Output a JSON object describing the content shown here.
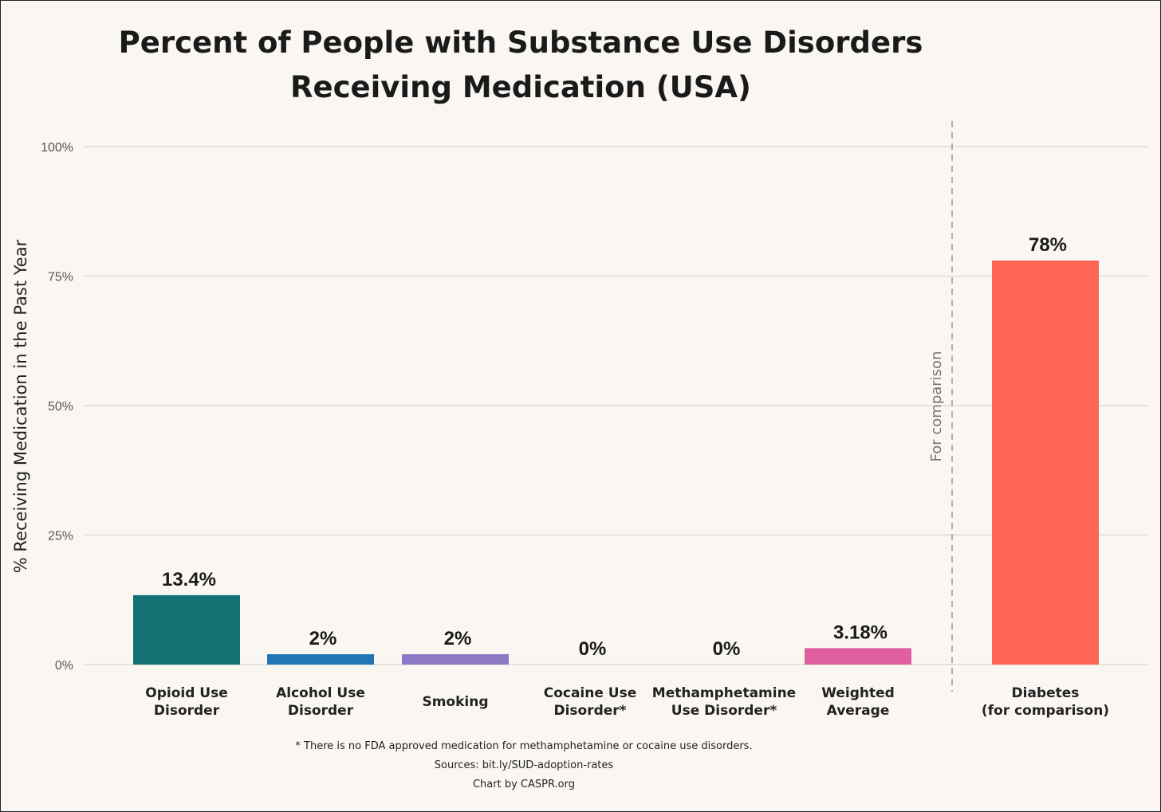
{
  "chart_data": {
    "type": "bar",
    "title_lines": [
      "Percent of People with Substance Use Disorders",
      "Receiving Medication (USA)"
    ],
    "ylabel": "% Receiving Medication in the Past Year",
    "ylim": [
      0,
      100
    ],
    "yticks": [
      0,
      25,
      50,
      75,
      100
    ],
    "ytick_labels": [
      "0%",
      "25%",
      "50%",
      "75%",
      "100%"
    ],
    "grid": true,
    "categories": [
      [
        "Opioid Use",
        "Disorder"
      ],
      [
        "Alcohol Use",
        "Disorder"
      ],
      [
        "Smoking"
      ],
      [
        "Cocaine Use",
        "Disorder*"
      ],
      [
        "Methamphetamine",
        "Use Disorder*"
      ],
      [
        "Weighted",
        "Average"
      ],
      [
        "Diabetes",
        "(for comparison)"
      ]
    ],
    "values": [
      13.4,
      2,
      2,
      0,
      0,
      3.18,
      78
    ],
    "data_labels": [
      "13.4%",
      "2%",
      "2%",
      "0%",
      "0%",
      "3.18%",
      "78%"
    ],
    "colors": [
      "#137073",
      "#2077b4",
      "#8e79c6",
      "#8e79c6",
      "#8e79c6",
      "#e0609f",
      "#fe6556"
    ],
    "annotation": "For comparison",
    "footnotes": [
      "* There is no FDA approved medication for methamphetamine or cocaine use disorders.",
      "Sources: bit.ly/SUD-adoption-rates",
      "Chart by CASPR.org"
    ]
  }
}
